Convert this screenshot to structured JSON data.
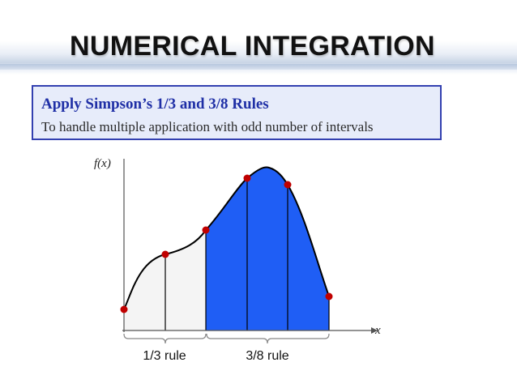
{
  "slide": {
    "title": "NUMERICAL INTEGRATION"
  },
  "callout": {
    "heading": "Apply Simpson’s 1/3 and 3/8 Rules",
    "text": "To handle multiple application with odd number of intervals"
  },
  "diagram": {
    "y_axis_label": "f(x)",
    "x_axis_label": "x",
    "segments": [
      {
        "label": "1/3 rule",
        "fill": "#f4f4f4",
        "intervals": 2
      },
      {
        "label": "3/8 rule",
        "fill": "#1f5ef5",
        "intervals": 3
      }
    ],
    "colors": {
      "curve": "#000000",
      "axis": "#555555",
      "points": "#c00000",
      "callout_border": "#3340b0",
      "callout_heading": "#1f2fa6"
    }
  }
}
